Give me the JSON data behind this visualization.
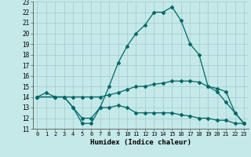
{
  "xlabel": "Humidex (Indice chaleur)",
  "xlim": [
    -0.5,
    23.5
  ],
  "ylim": [
    11,
    23
  ],
  "xticks": [
    0,
    1,
    2,
    3,
    4,
    5,
    6,
    7,
    8,
    9,
    10,
    11,
    12,
    13,
    14,
    15,
    16,
    17,
    18,
    19,
    20,
    21,
    22,
    23
  ],
  "yticks": [
    11,
    12,
    13,
    14,
    15,
    16,
    17,
    18,
    19,
    20,
    21,
    22,
    23
  ],
  "bg_color": "#c5e8e8",
  "line_color": "#006868",
  "grid_color": "#a0cccc",
  "line1_x": [
    0,
    1,
    2,
    3,
    4,
    5,
    6,
    7,
    8,
    9,
    10,
    11,
    12,
    13,
    14,
    15,
    16,
    17,
    18,
    19,
    20,
    21,
    22,
    23
  ],
  "line1_y": [
    14.0,
    14.4,
    14.0,
    14.0,
    13.0,
    11.5,
    11.5,
    13.0,
    15.0,
    17.2,
    18.8,
    20.0,
    20.8,
    22.0,
    22.0,
    22.5,
    21.2,
    19.0,
    18.0,
    15.0,
    14.5,
    13.5,
    12.5,
    11.5
  ],
  "line2_x": [
    0,
    2,
    3,
    4,
    5,
    6,
    7,
    8,
    9,
    10,
    11,
    12,
    13,
    14,
    15,
    16,
    17,
    18,
    19,
    20,
    21,
    22,
    23
  ],
  "line2_y": [
    14.0,
    14.0,
    14.0,
    14.0,
    14.0,
    14.0,
    14.0,
    14.2,
    14.4,
    14.7,
    15.0,
    15.0,
    15.2,
    15.3,
    15.5,
    15.5,
    15.5,
    15.4,
    15.0,
    14.8,
    14.5,
    12.5,
    11.5
  ],
  "line3_x": [
    0,
    2,
    3,
    4,
    5,
    6,
    7,
    8,
    9,
    10,
    11,
    12,
    13,
    14,
    15,
    16,
    17,
    18,
    19,
    20,
    21,
    22,
    23
  ],
  "line3_y": [
    14.0,
    14.0,
    14.0,
    13.0,
    12.0,
    12.0,
    13.0,
    13.0,
    13.2,
    13.0,
    12.5,
    12.5,
    12.5,
    12.5,
    12.5,
    12.3,
    12.2,
    12.0,
    12.0,
    11.8,
    11.8,
    11.5,
    11.5
  ]
}
